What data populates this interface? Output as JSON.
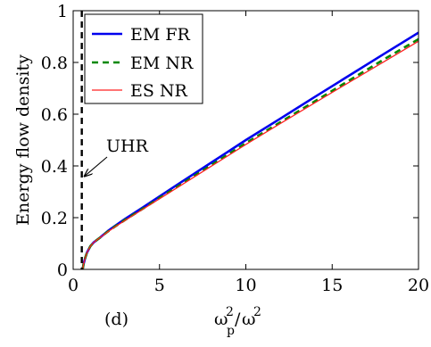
{
  "chart_data": {
    "type": "line",
    "panel_label": "(d)",
    "xlabel": {
      "base1": "ω",
      "sup1": "2",
      "sub1": "p",
      "slash": "/",
      "base2": "ω",
      "sup2": "2"
    },
    "ylabel": "Energy flow density",
    "xlim": [
      0,
      20
    ],
    "ylim": [
      0,
      1
    ],
    "xticks": [
      "0",
      "5",
      "10",
      "15",
      "20"
    ],
    "yticks": [
      "0",
      "0.2",
      "0.4",
      "0.6",
      "0.8",
      "1"
    ],
    "xtick_values": [
      0,
      5,
      10,
      15,
      20
    ],
    "ytick_values": [
      0,
      0.2,
      0.4,
      0.6,
      0.8,
      1
    ],
    "legend_position": "top-left",
    "grid": false,
    "series": [
      {
        "name": "EM FR",
        "color": "#0000ee",
        "style": "solid",
        "x": [
          0.55,
          0.6,
          0.7,
          0.8,
          1.0,
          1.2,
          1.5,
          2.0,
          2.5,
          3,
          4,
          5,
          6,
          8,
          10,
          12,
          14,
          16,
          18,
          20
        ],
        "y": [
          0.0,
          0.02,
          0.045,
          0.065,
          0.09,
          0.105,
          0.12,
          0.148,
          0.172,
          0.195,
          0.238,
          0.282,
          0.326,
          0.413,
          0.5,
          0.583,
          0.667,
          0.75,
          0.833,
          0.915
        ]
      },
      {
        "name": "EM NR",
        "color": "#008800",
        "style": "dashed",
        "x": [
          0.55,
          0.6,
          0.7,
          0.8,
          1.0,
          1.2,
          1.5,
          2.0,
          2.5,
          3,
          4,
          5,
          6,
          8,
          10,
          12,
          14,
          16,
          18,
          20
        ],
        "y": [
          0.0,
          0.02,
          0.045,
          0.065,
          0.09,
          0.105,
          0.12,
          0.146,
          0.169,
          0.191,
          0.233,
          0.276,
          0.318,
          0.403,
          0.488,
          0.569,
          0.65,
          0.731,
          0.812,
          0.89
        ]
      },
      {
        "name": "ES NR",
        "color": "#ff2222",
        "style": "solid",
        "x": [
          0.55,
          0.6,
          0.7,
          0.8,
          1.0,
          1.2,
          1.5,
          2.0,
          2.5,
          3,
          4,
          5,
          6,
          8,
          10,
          12,
          14,
          16,
          18,
          20
        ],
        "y": [
          0.0,
          0.02,
          0.045,
          0.065,
          0.09,
          0.105,
          0.12,
          0.145,
          0.168,
          0.189,
          0.231,
          0.273,
          0.315,
          0.399,
          0.483,
          0.564,
          0.644,
          0.724,
          0.803,
          0.882
        ]
      }
    ],
    "vline": {
      "x": 0.5,
      "color": "#000000",
      "style": "dashed"
    },
    "annotation": {
      "text": "UHR",
      "target": {
        "x": 0.5,
        "y": 0.36
      }
    }
  }
}
